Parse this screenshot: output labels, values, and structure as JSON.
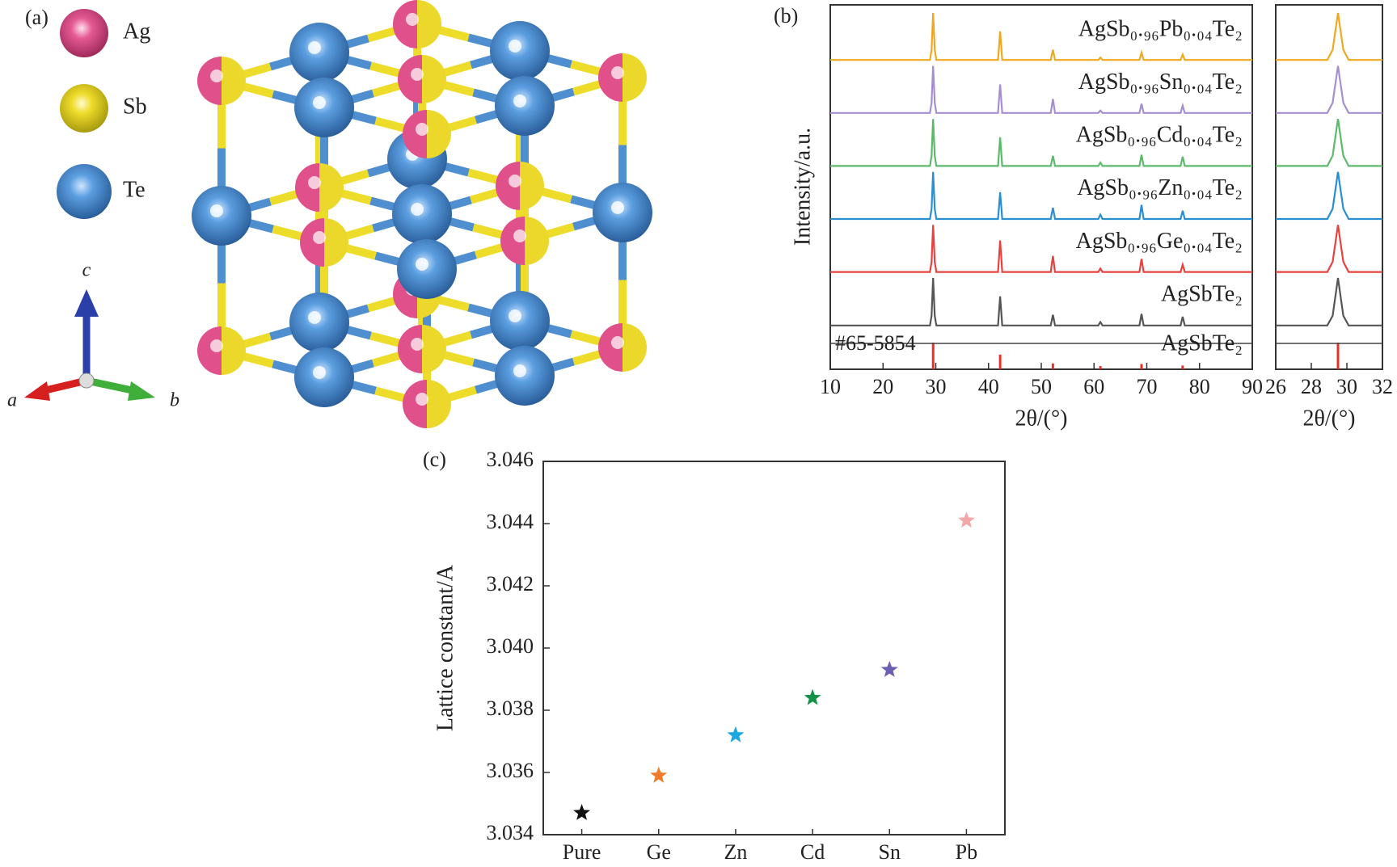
{
  "panel_a": {
    "label": "(a)",
    "legend": [
      "Ag",
      "Sb",
      "Te"
    ],
    "axes": [
      "c",
      "a",
      "b"
    ]
  },
  "chart_data": [
    {
      "type": "line",
      "panel_label": "(b)",
      "ylabel": "Intensity/a.u.",
      "xlabel": "2θ/(°)",
      "xlim": [
        10,
        90
      ],
      "xticks": [
        10,
        20,
        30,
        40,
        50,
        60,
        70,
        80,
        90
      ],
      "ylim": [
        0,
        100
      ],
      "x": [
        10,
        28.9,
        29.2,
        29.5,
        29.8,
        30.1,
        41.8,
        42.2,
        42.6,
        51.8,
        52.2,
        52.6,
        60.8,
        61.2,
        61.6,
        68.6,
        69.0,
        69.4,
        76.4,
        76.8,
        77.2,
        90
      ],
      "series": [
        {
          "name": "AgSbTe₂",
          "color": "#555555",
          "values": [
            2,
            2,
            22,
            100,
            22,
            2,
            2,
            62,
            2,
            2,
            24,
            2,
            2,
            9,
            2,
            2,
            26,
            2,
            2,
            20,
            2,
            2
          ]
        },
        {
          "name": "AgSb₀.₉₆Ge₀.₀₄Te₂",
          "color": "#e8423f",
          "values": [
            3,
            3,
            24,
            100,
            24,
            3,
            3,
            68,
            3,
            3,
            36,
            3,
            3,
            10,
            3,
            3,
            30,
            3,
            3,
            18,
            3,
            3
          ]
        },
        {
          "name": "AgSb₀.₉₆Zn₀.₀₄Te₂",
          "color": "#2a8fd0",
          "values": [
            3,
            3,
            24,
            100,
            24,
            3,
            3,
            58,
            3,
            3,
            26,
            3,
            3,
            12,
            3,
            3,
            32,
            3,
            3,
            20,
            3,
            3
          ]
        },
        {
          "name": "AgSb₀.₉₆Cd₀.₀₄Te₂",
          "color": "#5cba6a",
          "values": [
            3,
            3,
            24,
            100,
            24,
            3,
            3,
            62,
            3,
            3,
            24,
            3,
            3,
            10,
            3,
            3,
            26,
            3,
            3,
            22,
            3,
            3
          ]
        },
        {
          "name": "AgSb₀.₉₆Sn₀.₀₄Te₂",
          "color": "#a58fd0",
          "values": [
            3,
            3,
            24,
            100,
            24,
            3,
            3,
            62,
            3,
            3,
            32,
            3,
            3,
            8,
            3,
            3,
            22,
            3,
            3,
            18,
            3,
            3
          ]
        },
        {
          "name": "AgSb₀.₉₆Pb₀.₀₄Te₂",
          "color": "#f0a820",
          "values": [
            3,
            3,
            24,
            100,
            24,
            3,
            3,
            62,
            3,
            3,
            24,
            3,
            3,
            8,
            3,
            3,
            18,
            3,
            3,
            14,
            3,
            3
          ]
        }
      ],
      "reference": {
        "label": "#65-5854",
        "name": "AgSbTe₂",
        "color": "#e8302a",
        "x": [
          29.5,
          42.2,
          52.2,
          61.2,
          69.0,
          76.8
        ],
        "values": [
          100,
          55,
          22,
          12,
          20,
          14
        ]
      }
    },
    {
      "type": "line",
      "xlabel": "2θ/(°)",
      "xlim": [
        26,
        32
      ],
      "xticks": [
        26,
        28,
        30,
        32
      ]
    },
    {
      "type": "scatter",
      "panel_label": "(c)",
      "ylabel": "Lattice constant/A",
      "categories": [
        "Pure",
        "Ge",
        "Zn",
        "Cd",
        "Sn",
        "Pb"
      ],
      "values": [
        3.0347,
        3.0359,
        3.0372,
        3.0384,
        3.0393,
        3.0441
      ],
      "colors": [
        "#111111",
        "#f07b2b",
        "#1aa8e0",
        "#13934a",
        "#6a5fb0",
        "#f2a8a8"
      ],
      "ylim": [
        3.034,
        3.046
      ],
      "yticks": [
        {
          "value": 3.034,
          "label": "3.034"
        },
        {
          "value": 3.036,
          "label": "3.036"
        },
        {
          "value": 3.038,
          "label": "3.038"
        },
        {
          "value": 3.04,
          "label": "3.040"
        },
        {
          "value": 3.042,
          "label": "3.042"
        },
        {
          "value": 3.044,
          "label": "3.044"
        },
        {
          "value": 3.046,
          "label": "3.046"
        }
      ]
    }
  ]
}
